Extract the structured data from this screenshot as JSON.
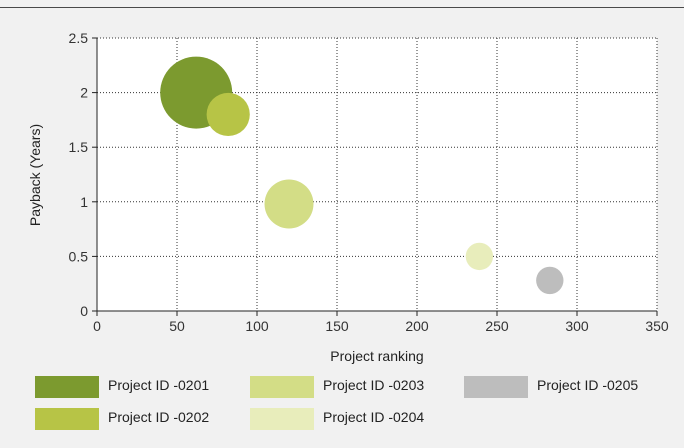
{
  "chart_data": {
    "type": "bubble",
    "title": "",
    "xlabel": "Project ranking",
    "ylabel": "Payback (Years)",
    "xlim": [
      0,
      350
    ],
    "ylim": [
      0,
      2.5
    ],
    "xticks": [
      0,
      50,
      100,
      150,
      200,
      250,
      300,
      350
    ],
    "yticks": [
      0,
      0.5,
      1,
      1.5,
      2,
      2.5
    ],
    "ytick_labels": [
      "0",
      "0.5",
      "1",
      "1.5",
      "2",
      "2.5"
    ],
    "grid": true,
    "legend_position": "bottom",
    "series": [
      {
        "name": "Project ID -0201",
        "x": 62,
        "y": 2.0,
        "size": 1.0,
        "color": "#7c9a2f"
      },
      {
        "name": "Project ID -0202",
        "x": 82,
        "y": 1.8,
        "size": 0.6,
        "color": "#b7c446"
      },
      {
        "name": "Project ID -0203",
        "x": 120,
        "y": 0.98,
        "size": 0.68,
        "color": "#d3dd86"
      },
      {
        "name": "Project ID -0204",
        "x": 239,
        "y": 0.5,
        "size": 0.38,
        "color": "#e8edbb"
      },
      {
        "name": "Project ID -0205",
        "x": 283,
        "y": 0.28,
        "size": 0.38,
        "color": "#bdbdbd"
      }
    ]
  }
}
